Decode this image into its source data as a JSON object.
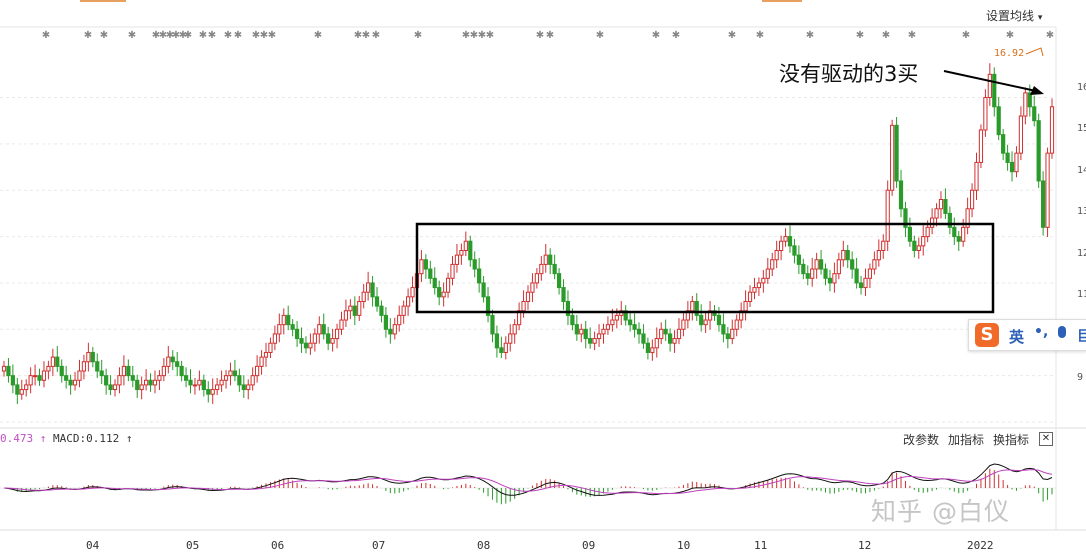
{
  "toolbar": {
    "settings_label": "设置均线",
    "settings_caret": "▾"
  },
  "annotation": {
    "text": "没有驱动的3买",
    "high_label": "16.92"
  },
  "macd": {
    "value_prefix": "0.473",
    "arrow1": "↑",
    "label": "MACD:0.112",
    "arrow2": "↑",
    "buttons": [
      "改参数",
      "加指标",
      "换指标"
    ],
    "close": "✕"
  },
  "ime": {
    "logo": "S",
    "lang": "英",
    "punct": "•,",
    "more": "巨"
  },
  "watermark": "知乎 @白仪",
  "colors": {
    "up": "#d03030",
    "down": "#2a9a2a",
    "dif": "#111111",
    "dea": "#c040c0",
    "highlight": "#d8701a",
    "box": "#000000"
  },
  "chart_data": {
    "type": "candlestick",
    "title": "",
    "x_ticks": [
      "04",
      "05",
      "06",
      "07",
      "08",
      "09",
      "10",
      "11",
      "12",
      "2022"
    ],
    "y_ticks": [
      "16",
      "15",
      "14",
      "13",
      "12",
      "11",
      "9"
    ],
    "ylim": [
      9.0,
      17.5
    ],
    "highest": 16.92,
    "box_range": {
      "low": 10.7,
      "high": 12.85,
      "start_month": "07",
      "end_month": "2022"
    },
    "closes": [
      10.2,
      10.0,
      9.8,
      9.6,
      9.7,
      9.8,
      10.0,
      10.0,
      9.9,
      10.1,
      10.2,
      10.4,
      10.2,
      10.0,
      9.9,
      9.8,
      9.9,
      10.1,
      10.3,
      10.5,
      10.3,
      10.1,
      10.0,
      9.8,
      9.7,
      9.8,
      10.0,
      10.2,
      10.0,
      9.9,
      9.7,
      9.8,
      9.9,
      9.8,
      9.9,
      10.0,
      10.2,
      10.4,
      10.3,
      10.2,
      10.0,
      9.9,
      9.8,
      9.8,
      9.9,
      9.7,
      9.6,
      9.7,
      9.8,
      9.9,
      10.0,
      10.1,
      10.0,
      9.8,
      9.7,
      9.8,
      10.0,
      10.2,
      10.4,
      10.5,
      10.7,
      10.9,
      11.1,
      11.3,
      11.1,
      11.0,
      10.8,
      10.7,
      10.6,
      10.7,
      10.9,
      11.1,
      10.9,
      10.7,
      10.8,
      11.0,
      11.2,
      11.4,
      11.5,
      11.3,
      11.6,
      11.8,
      12.0,
      11.7,
      11.5,
      11.3,
      11.0,
      10.9,
      11.1,
      11.3,
      11.5,
      11.7,
      11.9,
      12.2,
      12.5,
      12.3,
      12.1,
      11.9,
      11.7,
      11.8,
      12.1,
      12.4,
      12.6,
      12.7,
      12.9,
      12.5,
      12.3,
      12.0,
      11.7,
      11.3,
      10.9,
      10.6,
      10.5,
      10.7,
      10.9,
      11.1,
      11.4,
      11.6,
      11.8,
      12.0,
      12.2,
      12.4,
      12.6,
      12.4,
      12.2,
      11.9,
      11.6,
      11.3,
      11.1,
      10.9,
      11.0,
      10.8,
      10.7,
      10.8,
      10.9,
      11.0,
      11.1,
      11.2,
      11.3,
      11.4,
      11.2,
      11.1,
      11.0,
      10.9,
      10.7,
      10.5,
      10.6,
      10.8,
      11.0,
      10.9,
      10.7,
      10.8,
      11.0,
      11.2,
      11.4,
      11.6,
      11.3,
      11.1,
      11.2,
      11.4,
      11.3,
      11.1,
      10.9,
      10.8,
      11.0,
      11.2,
      11.4,
      11.6,
      11.8,
      11.9,
      12.0,
      12.1,
      12.3,
      12.5,
      12.7,
      12.9,
      13.0,
      12.8,
      12.6,
      12.4,
      12.2,
      12.1,
      12.3,
      12.5,
      12.3,
      12.1,
      12.0,
      12.2,
      12.5,
      12.7,
      12.5,
      12.3,
      12.0,
      11.9,
      12.1,
      12.3,
      12.5,
      12.7,
      12.9,
      14.0,
      15.4,
      14.2,
      13.6,
      13.2,
      12.9,
      12.7,
      12.8,
      13.0,
      13.2,
      13.4,
      13.6,
      13.8,
      13.5,
      13.2,
      13.0,
      12.9,
      13.2,
      13.6,
      14.0,
      14.6,
      15.3,
      16.0,
      16.5,
      15.8,
      15.2,
      14.8,
      14.6,
      14.4,
      14.8,
      15.6,
      16.1,
      15.8,
      15.5,
      14.2,
      13.2,
      14.8,
      15.8
    ]
  }
}
